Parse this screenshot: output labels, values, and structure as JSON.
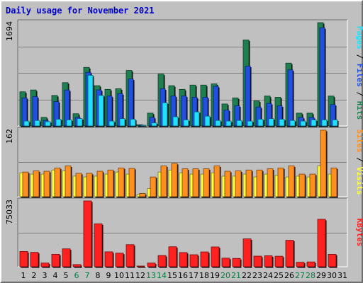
{
  "chart_data": {
    "type": "bar",
    "title": "Daily usage for November 2021",
    "days": [
      "1",
      "2",
      "3",
      "4",
      "5",
      "6",
      "7",
      "8",
      "9",
      "10",
      "11",
      "12",
      "13",
      "14",
      "15",
      "16",
      "17",
      "18",
      "19",
      "20",
      "21",
      "22",
      "23",
      "24",
      "25",
      "26",
      "27",
      "28",
      "29",
      "30",
      "31"
    ],
    "weekend_days": [
      "6",
      "7",
      "13",
      "14",
      "20",
      "21",
      "27",
      "28"
    ],
    "colors": {
      "hits": "#1e8050",
      "files": "#2050e0",
      "pages": "#20e0ff",
      "visits": "#ffff40",
      "sites": "#ff9020",
      "kbytes": "#ff2020",
      "weekend_label": "#008040",
      "weekday_label": "#000000",
      "title": "#0000c8"
    },
    "panels": [
      {
        "name": "hits-files-pages",
        "ymax_label": "1694",
        "ylim": [
          0,
          1694
        ],
        "legend": [
          {
            "text": "Pages",
            "color": "#20e0ff"
          },
          {
            "text": " / ",
            "color": "#000000"
          },
          {
            "text": "Files",
            "color": "#2050e0"
          },
          {
            "text": " / ",
            "color": "#000000"
          },
          {
            "text": "Hits",
            "color": "#1e8050"
          }
        ],
        "series": [
          {
            "name": "Hits",
            "color": "#1e8050",
            "values": [
              560,
              590,
              140,
              500,
              710,
              200,
              960,
              660,
              600,
              610,
              910,
              20,
              210,
              850,
              660,
              600,
              670,
              670,
              690,
              360,
              460,
              1410,
              410,
              490,
              470,
              1030,
              210,
              210,
              1694,
              490,
              0
            ]
          },
          {
            "name": "Files",
            "color": "#2050e0",
            "values": [
              460,
              480,
              90,
              400,
              590,
              140,
              880,
              590,
              490,
              530,
              770,
              10,
              140,
              610,
              490,
              490,
              470,
              470,
              650,
              260,
              330,
              980,
              310,
              370,
              330,
              920,
              140,
              140,
              1610,
              350,
              0
            ]
          },
          {
            "name": "Pages",
            "color": "#20e0ff",
            "values": [
              80,
              90,
              70,
              110,
              100,
              120,
              830,
              500,
              80,
              120,
              110,
              5,
              50,
              380,
              150,
              100,
              230,
              160,
              90,
              80,
              90,
              80,
              110,
              120,
              110,
              90,
              80,
              100,
              100,
              100,
              0
            ]
          }
        ]
      },
      {
        "name": "visits-sites",
        "ymax_label": "162",
        "ylim": [
          0,
          162
        ],
        "legend": [
          {
            "text": "Sites",
            "color": "#ff9020"
          },
          {
            "text": " / ",
            "color": "#000000"
          },
          {
            "text": "Visits",
            "color": "#ffff40"
          }
        ],
        "series": [
          {
            "name": "Visits",
            "color": "#ffff40",
            "values": [
              58,
              55,
              55,
              65,
              63,
              50,
              48,
              50,
              55,
              60,
              55,
              5,
              20,
              60,
              65,
              58,
              55,
              55,
              58,
              50,
              50,
              55,
              48,
              55,
              52,
              48,
              50,
              48,
              75,
              55,
              0
            ]
          },
          {
            "name": "Sites",
            "color": "#ff9020",
            "values": [
              60,
              63,
              62,
              70,
              75,
              57,
              57,
              62,
              65,
              70,
              69,
              8,
              48,
              75,
              81,
              68,
              68,
              68,
              75,
              62,
              63,
              65,
              65,
              68,
              70,
              75,
              55,
              55,
              162,
              70,
              0
            ]
          }
        ]
      },
      {
        "name": "kbytes",
        "ymax_label": "75033",
        "ylim": [
          0,
          75033
        ],
        "legend": [
          {
            "text": "KBytes",
            "color": "#ff2020"
          }
        ],
        "series": [
          {
            "name": "KBytes",
            "color": "#ff2020",
            "values": [
              17400,
              16400,
              4200,
              14200,
              20400,
              2500,
              75033,
              49000,
              17000,
              15500,
              25200,
              800,
              4200,
              12800,
              22800,
              16200,
              13700,
              16900,
              22600,
              9800,
              9500,
              31800,
              12100,
              12500,
              12000,
              30200,
              5100,
              5500,
              54100,
              14200,
              0
            ]
          }
        ]
      }
    ]
  }
}
